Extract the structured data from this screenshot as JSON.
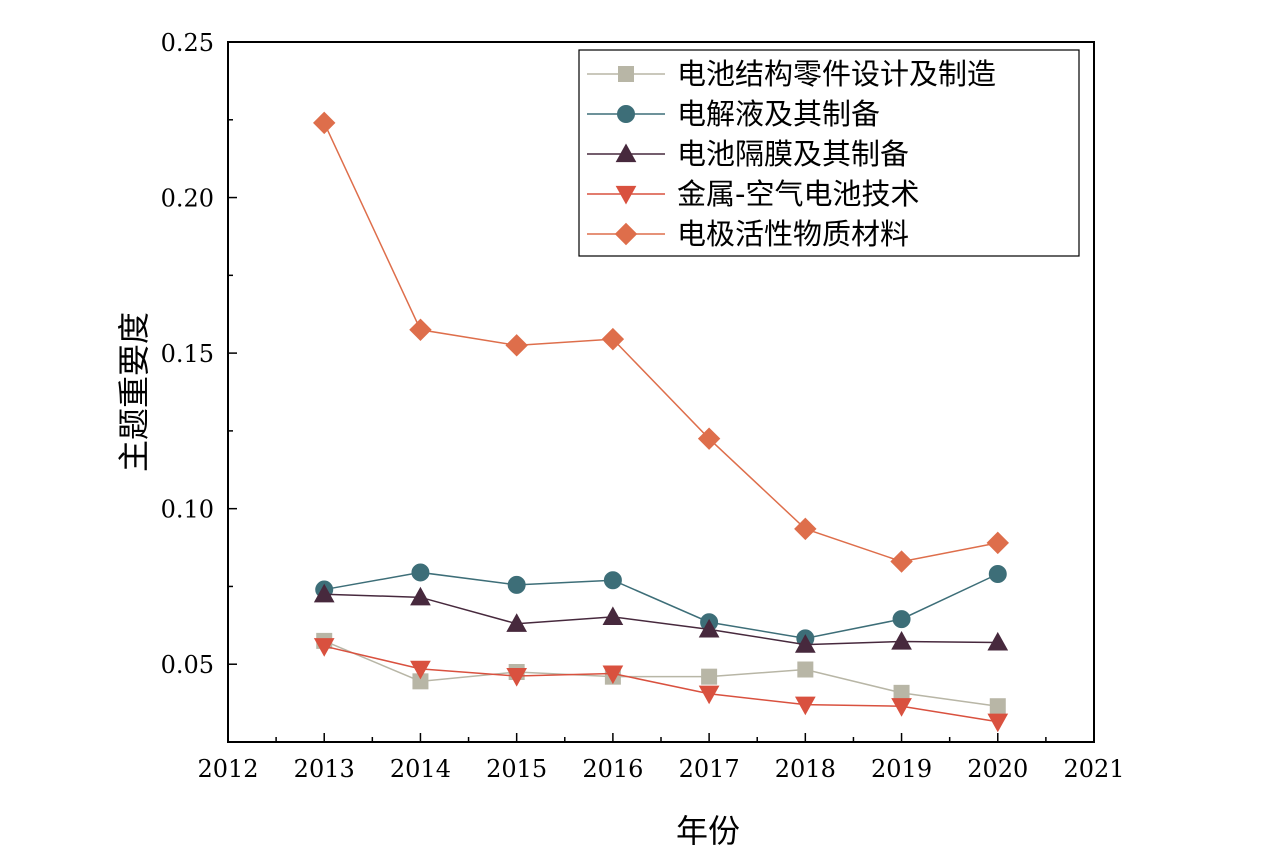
{
  "chart_data": {
    "type": "line",
    "title": "",
    "xlabel": "年份",
    "ylabel": "主题重要度",
    "xlim": [
      2012,
      2021
    ],
    "ylim": [
      0.025,
      0.25
    ],
    "x_ticks": [
      2012,
      2013,
      2014,
      2015,
      2016,
      2017,
      2018,
      2019,
      2020,
      2021
    ],
    "x_tick_labels": [
      "2012",
      "2013",
      "2014",
      "2015",
      "2016",
      "2017",
      "2018",
      "2019",
      "2020",
      "2021"
    ],
    "y_ticks": [
      0.05,
      0.1,
      0.15,
      0.2,
      0.25
    ],
    "y_tick_labels": [
      "0.05",
      "0.10",
      "0.15",
      "0.20",
      "0.25"
    ],
    "legend_position": "top-right",
    "x": [
      2013,
      2014,
      2015,
      2016,
      2017,
      2018,
      2019,
      2020
    ],
    "series": [
      {
        "name": "电池结构零件设计及制造",
        "marker": "square",
        "color": "#b8b6a6",
        "values": [
          0.0575,
          0.0445,
          0.0475,
          0.046,
          0.046,
          0.0483,
          0.0408,
          0.0365
        ]
      },
      {
        "name": "电解液及其制备",
        "marker": "circle",
        "color": "#3d6e78",
        "values": [
          0.074,
          0.0795,
          0.0755,
          0.077,
          0.0635,
          0.0583,
          0.0645,
          0.079
        ]
      },
      {
        "name": "电池隔膜及其制备",
        "marker": "triangle-up",
        "color": "#47293d",
        "values": [
          0.0725,
          0.0715,
          0.063,
          0.0652,
          0.0612,
          0.0563,
          0.0573,
          0.057
        ]
      },
      {
        "name": "金属-空气电池技术",
        "marker": "triangle-down",
        "color": "#d9513f",
        "values": [
          0.0558,
          0.0485,
          0.0462,
          0.047,
          0.0405,
          0.037,
          0.0365,
          0.0315
        ]
      },
      {
        "name": "电极活性物质材料",
        "marker": "diamond",
        "color": "#de6e4b",
        "values": [
          0.224,
          0.1575,
          0.1525,
          0.1545,
          0.1225,
          0.0935,
          0.083,
          0.089
        ]
      }
    ]
  }
}
